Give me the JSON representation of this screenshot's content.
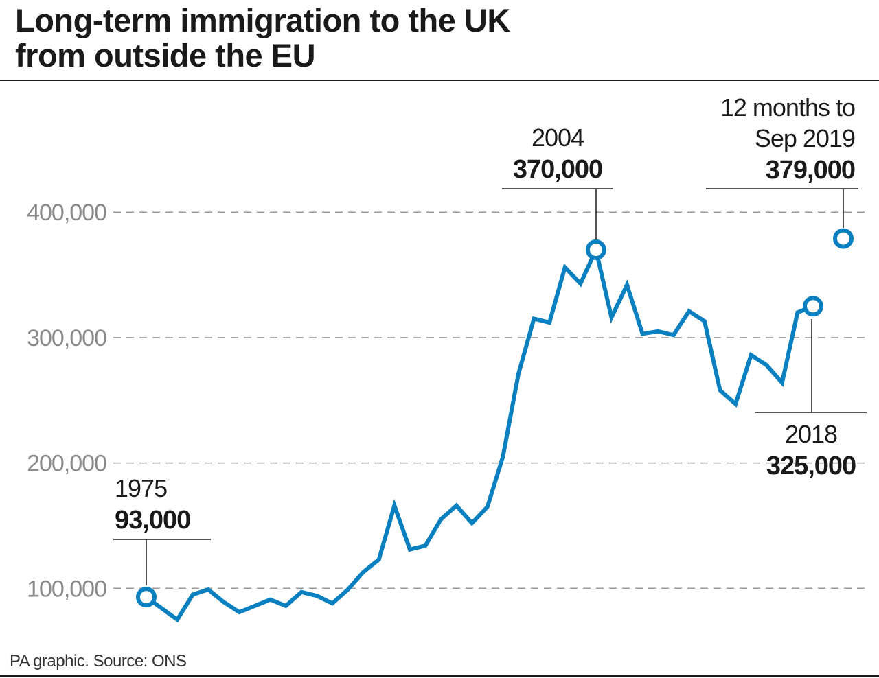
{
  "colors": {
    "line": "#0a80c0",
    "grid": "#999999",
    "text": "#1a1a1a",
    "tick": "#8a8a8a"
  },
  "source": "PA graphic. Source: ONS",
  "chart_data": {
    "type": "line",
    "title": [
      "Long-term immigration to the UK",
      "from outside the EU"
    ],
    "xlabel": "",
    "ylabel": "",
    "ylim": [
      60000,
      420000
    ],
    "yticks": [
      100000,
      200000,
      300000,
      400000
    ],
    "ytick_labels": [
      "100,000",
      "200,000",
      "300,000",
      "400,000"
    ],
    "grid": "horizontal dashed",
    "x": [
      1975,
      1976,
      1977,
      1978,
      1979,
      1980,
      1981,
      1982,
      1983,
      1984,
      1985,
      1986,
      1987,
      1988,
      1989,
      1990,
      1991,
      1992,
      1993,
      1994,
      1995,
      1996,
      1997,
      1998,
      1999,
      2000,
      2001,
      2002,
      2003,
      2004,
      2005,
      2006,
      2007,
      2008,
      2009,
      2010,
      2011,
      2012,
      2013,
      2014,
      2015,
      2016,
      2017,
      2018
    ],
    "values": [
      93000,
      84000,
      75000,
      95000,
      99000,
      89000,
      81000,
      86000,
      91000,
      86000,
      97000,
      94000,
      88000,
      99000,
      113000,
      123000,
      166000,
      131000,
      134000,
      155000,
      166000,
      152000,
      165000,
      205000,
      271000,
      315000,
      312000,
      356000,
      343000,
      370000,
      316000,
      342000,
      303000,
      305000,
      302000,
      321000,
      313000,
      258000,
      247000,
      286000,
      278000,
      264000,
      320000,
      325000
    ],
    "extra_point": {
      "label": "12 months to Sep 2019",
      "value": 379000
    },
    "annotations": [
      {
        "lines": [
          "1975"
        ],
        "value_label": "93,000"
      },
      {
        "lines": [
          "2004"
        ],
        "value_label": "370,000"
      },
      {
        "lines": [
          "12 months to",
          "Sep 2019"
        ],
        "value_label": "379,000"
      },
      {
        "lines": [
          "2018"
        ],
        "value_label": "325,000"
      }
    ]
  }
}
